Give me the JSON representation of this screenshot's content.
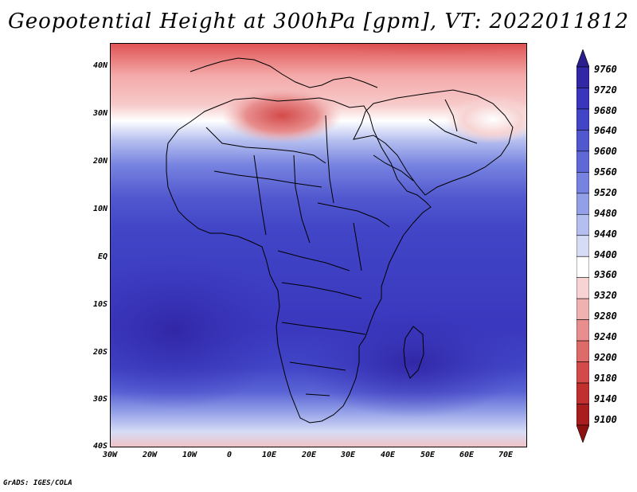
{
  "title": "Geopotential Height at 300hPa [gpm], VT: 2022011812",
  "footer": "GrADS: IGES/COLA",
  "lat_labels": [
    "40N",
    "30N",
    "20N",
    "10N",
    "EQ",
    "10S",
    "20S",
    "30S",
    "40S"
  ],
  "lon_labels": [
    "30W",
    "20W",
    "10W",
    "0",
    "10E",
    "20E",
    "30E",
    "40E",
    "50E",
    "60E",
    "70E"
  ],
  "colorbar": {
    "levels": [
      "9760",
      "9720",
      "9680",
      "9640",
      "9600",
      "9560",
      "9520",
      "9480",
      "9440",
      "9400",
      "9360",
      "9320",
      "9280",
      "9240",
      "9200",
      "9180",
      "9140",
      "9100"
    ],
    "colors_top_to_bottom": [
      "#2a1f8c",
      "#3127a6",
      "#3a35bd",
      "#4145c6",
      "#5158cf",
      "#6068d8",
      "#7783e0",
      "#93a0e7",
      "#b4beef",
      "#d7dcf6",
      "#ffffff",
      "#f7d3d3",
      "#f0b1b1",
      "#e88e8e",
      "#de6a6a",
      "#d44a4a",
      "#c22f2f",
      "#a81d1d",
      "#8d1111"
    ]
  }
}
